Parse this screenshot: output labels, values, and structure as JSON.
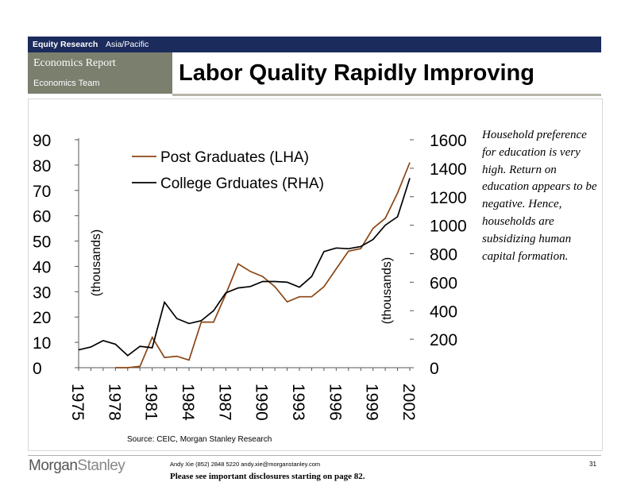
{
  "header": {
    "brand_bold": "Equity Research",
    "region": "Asia/Pacific",
    "report_type": "Economics Report",
    "team": "Economics Team",
    "title": "Labor Quality Rapidly Improving"
  },
  "commentary": "Household preference for education is very high.  Return on education appears to be negative.  Hence, households are subsidizing human capital formation.",
  "source": "Source: CEIC, Morgan Stanley Research",
  "footer": {
    "logo_text": "MorganStanley",
    "contact": "Andy Xie (852) 2848 5220  andy.xie@morganstanley.com",
    "disclosure": "Please see important disclosures starting on page 82.",
    "page_number": "31"
  },
  "colors": {
    "post_graduates": "#8b4513",
    "college_graduates": "#000000",
    "header_bar": "#1b2b5c",
    "header_panel": "#7a7f6e"
  },
  "chart_data": {
    "type": "line",
    "x": [
      1975,
      1976,
      1977,
      1978,
      1979,
      1980,
      1981,
      1982,
      1983,
      1984,
      1985,
      1986,
      1987,
      1988,
      1989,
      1990,
      1991,
      1992,
      1993,
      1994,
      1995,
      1996,
      1997,
      1998,
      1999,
      2000,
      2001,
      2002
    ],
    "x_tick_labels": [
      "1975",
      "1978",
      "1981",
      "1984",
      "1987",
      "1990",
      "1993",
      "1996",
      "1999",
      "2002"
    ],
    "left_axis": {
      "label": "(thousands)",
      "ylim": [
        0,
        90
      ],
      "ticks": [
        "0",
        "10",
        "20",
        "30",
        "40",
        "50",
        "60",
        "70",
        "80",
        "90"
      ]
    },
    "right_axis": {
      "label": "(thousands)",
      "ylim": [
        0,
        1600
      ],
      "ticks": [
        "0",
        "200",
        "400",
        "600",
        "800",
        "1000",
        "1200",
        "1400",
        "1600"
      ]
    },
    "series": [
      {
        "name": "Post Graduates (LHA)",
        "axis": "left",
        "values": [
          null,
          null,
          null,
          0,
          0,
          0.5,
          12,
          4,
          4.5,
          3,
          18,
          18,
          29,
          41,
          38,
          36,
          32,
          26,
          28,
          28,
          32,
          39,
          46,
          47,
          55,
          59,
          69,
          81
        ]
      },
      {
        "name": "College Grduates (RHA)",
        "axis": "right",
        "values": [
          125,
          145,
          190,
          165,
          85,
          150,
          140,
          460,
          345,
          310,
          330,
          400,
          525,
          560,
          570,
          605,
          605,
          600,
          565,
          640,
          815,
          840,
          835,
          850,
          900,
          1000,
          1060,
          1330
        ]
      }
    ],
    "legend": "top-center"
  }
}
